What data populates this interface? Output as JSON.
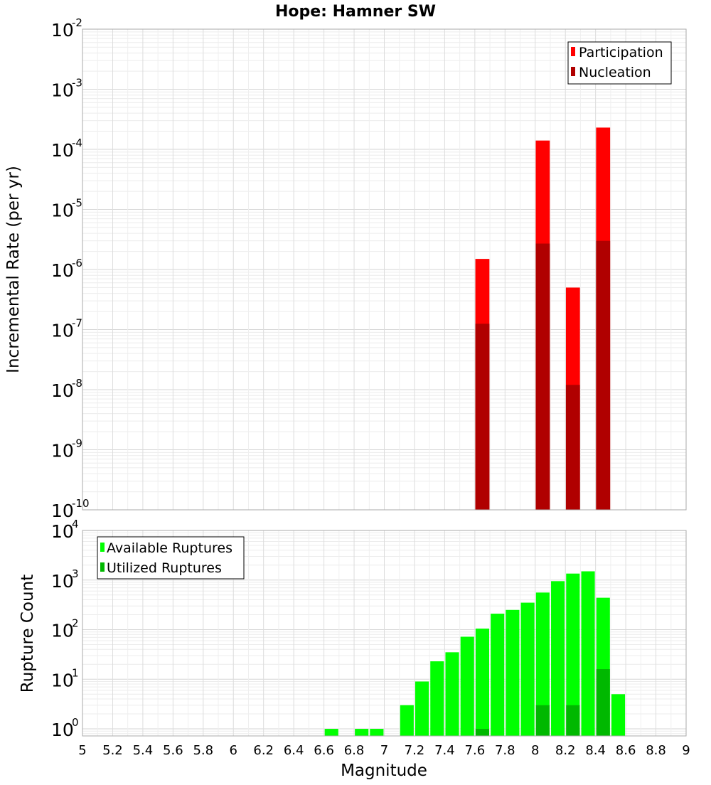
{
  "chart_data": [
    {
      "type": "bar",
      "title": "Hope: Hamner SW",
      "xlabel": "Magnitude",
      "ylabel": "Incremental Rate (per yr)",
      "yscale": "log",
      "xlim": [
        5,
        9
      ],
      "ylim": [
        1e-10,
        0.01
      ],
      "y_ticks": [
        {
          "base": "10",
          "exp": "-10",
          "value": 1e-10
        },
        {
          "base": "10",
          "exp": "-9",
          "value": 1e-09
        },
        {
          "base": "10",
          "exp": "-8",
          "value": 1e-08
        },
        {
          "base": "10",
          "exp": "-7",
          "value": 1e-07
        },
        {
          "base": "10",
          "exp": "-6",
          "value": 1e-06
        },
        {
          "base": "10",
          "exp": "-5",
          "value": 1e-05
        },
        {
          "base": "10",
          "exp": "-4",
          "value": 0.0001
        },
        {
          "base": "10",
          "exp": "-3",
          "value": 0.001
        },
        {
          "base": "10",
          "exp": "-2",
          "value": 0.01
        }
      ],
      "grid": true,
      "legend_position": "top-right",
      "series": [
        {
          "name": "Participation",
          "color": "#ff0000",
          "x": [
            7.65,
            8.05,
            8.25,
            8.45
          ],
          "values": [
            1.5e-06,
            0.00014,
            5e-07,
            0.00023
          ]
        },
        {
          "name": "Nucleation",
          "color": "#b00000",
          "x": [
            7.65,
            8.05,
            8.25,
            8.45
          ],
          "values": [
            1.25e-07,
            2.7e-06,
            1.2e-08,
            3e-06
          ]
        }
      ]
    },
    {
      "type": "bar",
      "xlabel": "Magnitude",
      "ylabel": "Rupture Count",
      "yscale": "log",
      "xlim": [
        5,
        9
      ],
      "ylim": [
        0.72,
        10000
      ],
      "y_ticks": [
        {
          "base": "10",
          "exp": "0",
          "value": 1
        },
        {
          "base": "10",
          "exp": "1",
          "value": 10
        },
        {
          "base": "10",
          "exp": "2",
          "value": 100
        },
        {
          "base": "10",
          "exp": "3",
          "value": 1000
        },
        {
          "base": "10",
          "exp": "4",
          "value": 10000
        }
      ],
      "x_tick_labels": [
        "5",
        "5.2",
        "5.4",
        "5.6",
        "5.8",
        "6",
        "6.2",
        "6.4",
        "6.6",
        "6.8",
        "7",
        "7.2",
        "7.4",
        "7.6",
        "7.8",
        "8",
        "8.2",
        "8.4",
        "8.6",
        "8.8",
        "9"
      ],
      "grid": true,
      "legend_position": "top-left",
      "series": [
        {
          "name": "Available Ruptures",
          "color": "#00ff00",
          "x": [
            6.65,
            6.85,
            6.95,
            7.15,
            7.25,
            7.35,
            7.45,
            7.55,
            7.65,
            7.75,
            7.85,
            7.95,
            8.05,
            8.15,
            8.25,
            8.35,
            8.45,
            8.55
          ],
          "values": [
            1,
            1,
            1,
            3,
            9,
            23,
            35,
            72,
            105,
            210,
            250,
            350,
            560,
            950,
            1350,
            1500,
            440,
            5
          ]
        },
        {
          "name": "Utilized Ruptures",
          "color": "#00b800",
          "x": [
            7.65,
            8.05,
            8.25,
            8.45
          ],
          "values": [
            1,
            3,
            3,
            16
          ]
        }
      ]
    }
  ]
}
